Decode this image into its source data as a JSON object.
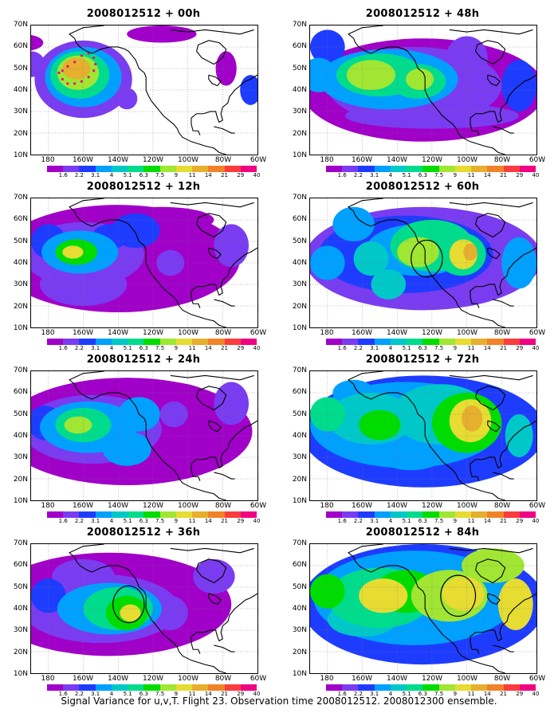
{
  "caption": "Signal Variance for u,v,T. Flight 23. Observation time 2008012512. 2008012300 ensemble.",
  "axes": {
    "lat_labels": [
      "70N",
      "60N",
      "50N",
      "40N",
      "30N",
      "20N",
      "10N"
    ],
    "lon_labels": [
      "180",
      "160W",
      "140W",
      "120W",
      "100W",
      "80W",
      "60W"
    ]
  },
  "colorbar": {
    "labels": [
      "1.6",
      "2.2",
      "3.1",
      "4",
      "5.1",
      "6.3",
      "7.5",
      "9",
      "11",
      "14",
      "21",
      "29",
      "40"
    ],
    "colors": [
      "#ffffff",
      "#a000c8",
      "#7a3cf0",
      "#1e3cff",
      "#00a0ff",
      "#00c8c8",
      "#00dc8c",
      "#00dc00",
      "#a0e632",
      "#e6dc32",
      "#e6af2d",
      "#f08228",
      "#fa3c3c",
      "#f00082"
    ]
  },
  "panels": [
    {
      "title": "2008012512 + 00h",
      "lead": "00h"
    },
    {
      "title": "2008012512 + 48h",
      "lead": "48h"
    },
    {
      "title": "2008012512 + 12h",
      "lead": "12h"
    },
    {
      "title": "2008012512 + 60h",
      "lead": "60h"
    },
    {
      "title": "2008012512 + 24h",
      "lead": "24h"
    },
    {
      "title": "2008012512 + 72h",
      "lead": "72h"
    },
    {
      "title": "2008012512 + 36h",
      "lead": "36h"
    },
    {
      "title": "2008012512 + 84h",
      "lead": "84h"
    }
  ]
}
